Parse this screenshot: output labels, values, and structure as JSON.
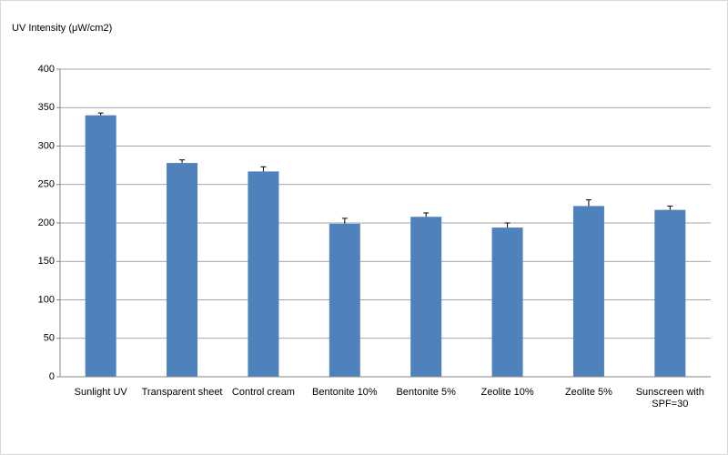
{
  "chart_data": {
    "type": "bar",
    "y_label": "UV Intensity (μW/cm2)",
    "categories": [
      "Sunlight UV",
      "Transparent sheet",
      "Control cream",
      "Bentonite 10%",
      "Bentonite 5%",
      "Zeolite 10%",
      "Zeolite 5%",
      "Sunscreen with SPF=30"
    ],
    "values": [
      340,
      278,
      267,
      199,
      208,
      194,
      222,
      217
    ],
    "errors": [
      3,
      4,
      6,
      7,
      5,
      6,
      8,
      5
    ],
    "color": "#4f81bd",
    "ylim": [
      0,
      400
    ],
    "yticks": [
      0,
      50,
      100,
      150,
      200,
      250,
      300,
      350,
      400
    ],
    "grid": true
  }
}
